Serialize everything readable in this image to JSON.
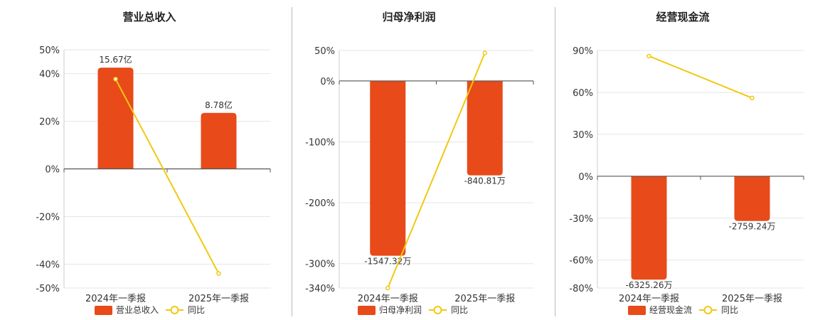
{
  "chart_data": [
    {
      "type": "bar",
      "title": "营业总收入",
      "categories": [
        "2024年一季报",
        "2025年一季报"
      ],
      "series": [
        {
          "name": "营业总收入",
          "type": "bar",
          "values": [
            42.5,
            23.5
          ],
          "labels": [
            "15.67亿",
            "8.78亿"
          ],
          "color": "#e84a1a"
        },
        {
          "name": "同比",
          "type": "line",
          "values": [
            37.7,
            -43.9
          ],
          "color": "#f2c811"
        }
      ],
      "ylim": [
        -50,
        50
      ],
      "yticks": [
        50,
        40,
        20,
        0,
        -20,
        -40,
        -50
      ],
      "ytick_labels": [
        "50%",
        "40%",
        "20%",
        "0%",
        "-20%",
        "-40%",
        "-50%"
      ],
      "grid": true,
      "legend": "bottom"
    },
    {
      "type": "bar",
      "title": "归母净利润",
      "categories": [
        "2024年一季报",
        "2025年一季报"
      ],
      "series": [
        {
          "name": "归母净利润",
          "type": "bar",
          "values": [
            -287,
            -155
          ],
          "labels": [
            "-1547.32万",
            "-840.81万"
          ],
          "color": "#e84a1a"
        },
        {
          "name": "同比",
          "type": "line",
          "values": [
            -340,
            46
          ],
          "color": "#f2c811"
        }
      ],
      "ylim": [
        -340,
        50
      ],
      "yticks": [
        50,
        0,
        -100,
        -200,
        -300,
        -340
      ],
      "ytick_labels": [
        "50%",
        "0%",
        "-100%",
        "-200%",
        "-300%",
        "-340%"
      ],
      "grid": true,
      "legend": "bottom"
    },
    {
      "type": "bar",
      "title": "经营现金流",
      "categories": [
        "2024年一季报",
        "2025年一季报"
      ],
      "series": [
        {
          "name": "经营现金流",
          "type": "bar",
          "values": [
            -74,
            -32
          ],
          "labels": [
            "-6325.26万",
            "-2759.24万"
          ],
          "color": "#e84a1a"
        },
        {
          "name": "同比",
          "type": "line",
          "values": [
            86,
            56
          ],
          "color": "#f2c811"
        }
      ],
      "ylim": [
        -80,
        90
      ],
      "yticks": [
        90,
        60,
        30,
        0,
        -30,
        -60,
        -80
      ],
      "ytick_labels": [
        "90%",
        "60%",
        "30%",
        "0%",
        "-30%",
        "-60%",
        "-80%"
      ],
      "grid": true,
      "legend": "bottom"
    }
  ]
}
